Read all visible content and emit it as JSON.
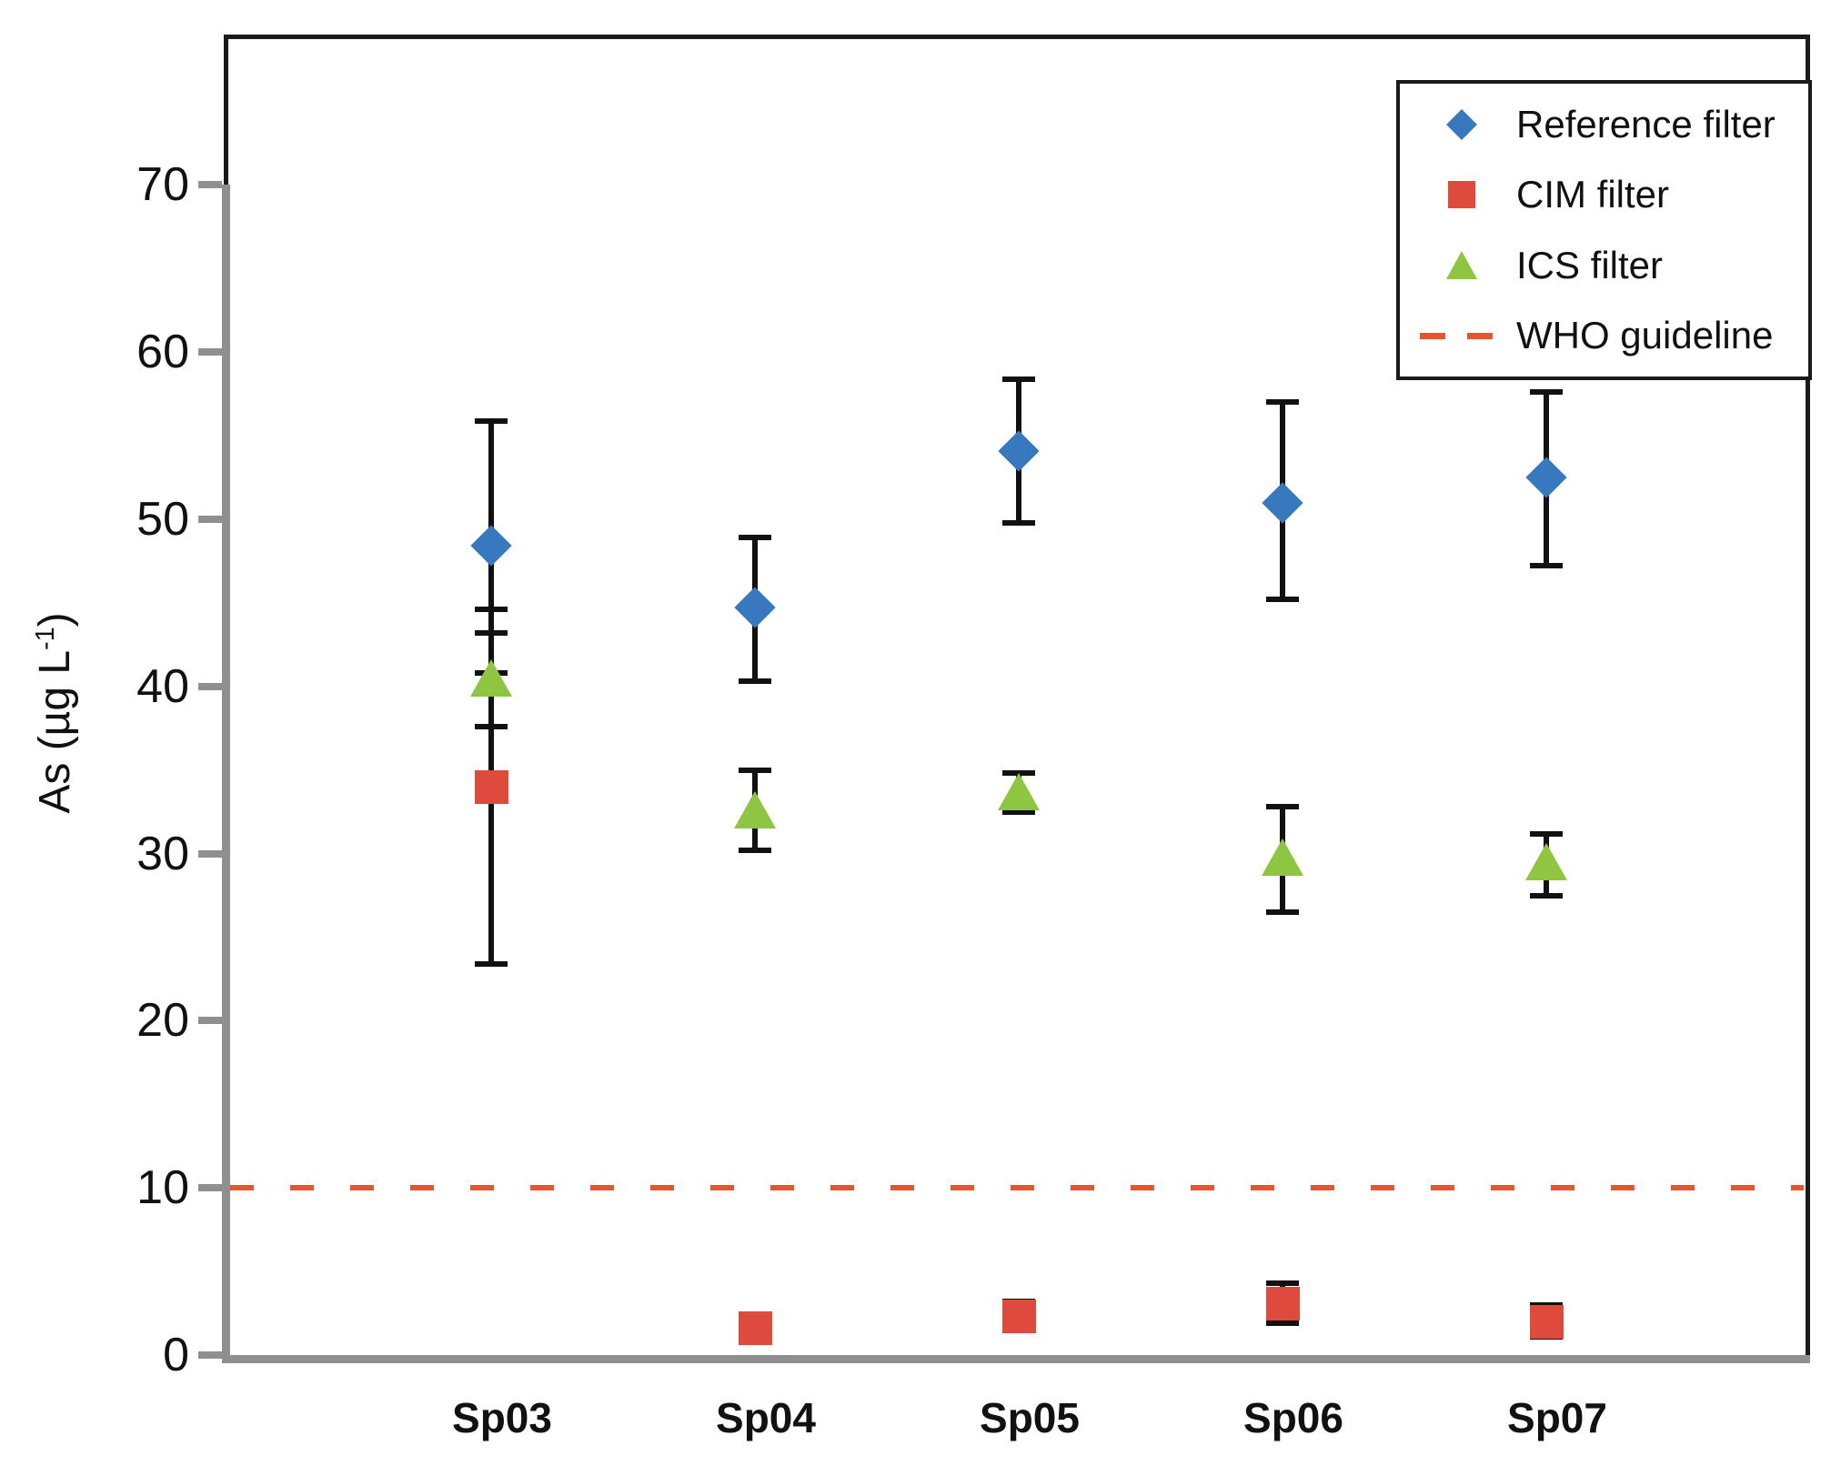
{
  "figure": {
    "background": "#ffffff"
  },
  "chart_data": {
    "type": "scatter",
    "title": "",
    "xlabel": "",
    "ylabel_prefix": "As (µg L",
    "ylabel_sup": "-1",
    "ylabel_suffix": ")",
    "ylim": [
      0,
      79
    ],
    "yticks": [
      0,
      10,
      20,
      30,
      40,
      50,
      60,
      70
    ],
    "grid": false,
    "legend_position": "top-right",
    "categories": [
      "Sp03",
      "Sp04",
      "Sp05",
      "Sp06",
      "Sp07"
    ],
    "series": [
      {
        "name": "Reference filter",
        "marker": "diamond",
        "color": "#3878BE",
        "values": [
          48.4,
          44.7,
          54.1,
          51.0,
          52.5
        ],
        "err_lo": [
          40.8,
          40.3,
          49.8,
          45.2,
          47.2
        ],
        "err_hi": [
          55.9,
          48.9,
          58.4,
          57.0,
          57.6
        ]
      },
      {
        "name": "CIM filter",
        "marker": "square",
        "color": "#DE4B3C",
        "values": [
          34.0,
          1.6,
          2.3,
          3.1,
          2.0
        ],
        "err_lo": [
          23.4,
          0.8,
          1.5,
          1.9,
          1.1
        ],
        "err_hi": [
          44.6,
          2.3,
          3.2,
          4.3,
          3.0
        ]
      },
      {
        "name": "ICS filter",
        "marker": "triangle",
        "color": "#8EC641",
        "values": [
          40.4,
          32.5,
          33.6,
          29.7,
          29.4
        ],
        "err_lo": [
          37.6,
          30.2,
          32.5,
          26.5,
          27.5
        ],
        "err_hi": [
          43.2,
          35.0,
          34.8,
          32.8,
          31.2
        ]
      }
    ],
    "who_guideline": {
      "label": "WHO guideline",
      "value": 10,
      "color": "#E8542F",
      "style": "dashed"
    },
    "colors": {
      "axis_gray": "#8F8F8F",
      "error_bar": "#111111",
      "text": "#1a1a1a",
      "border": "#1a1a1a"
    }
  }
}
